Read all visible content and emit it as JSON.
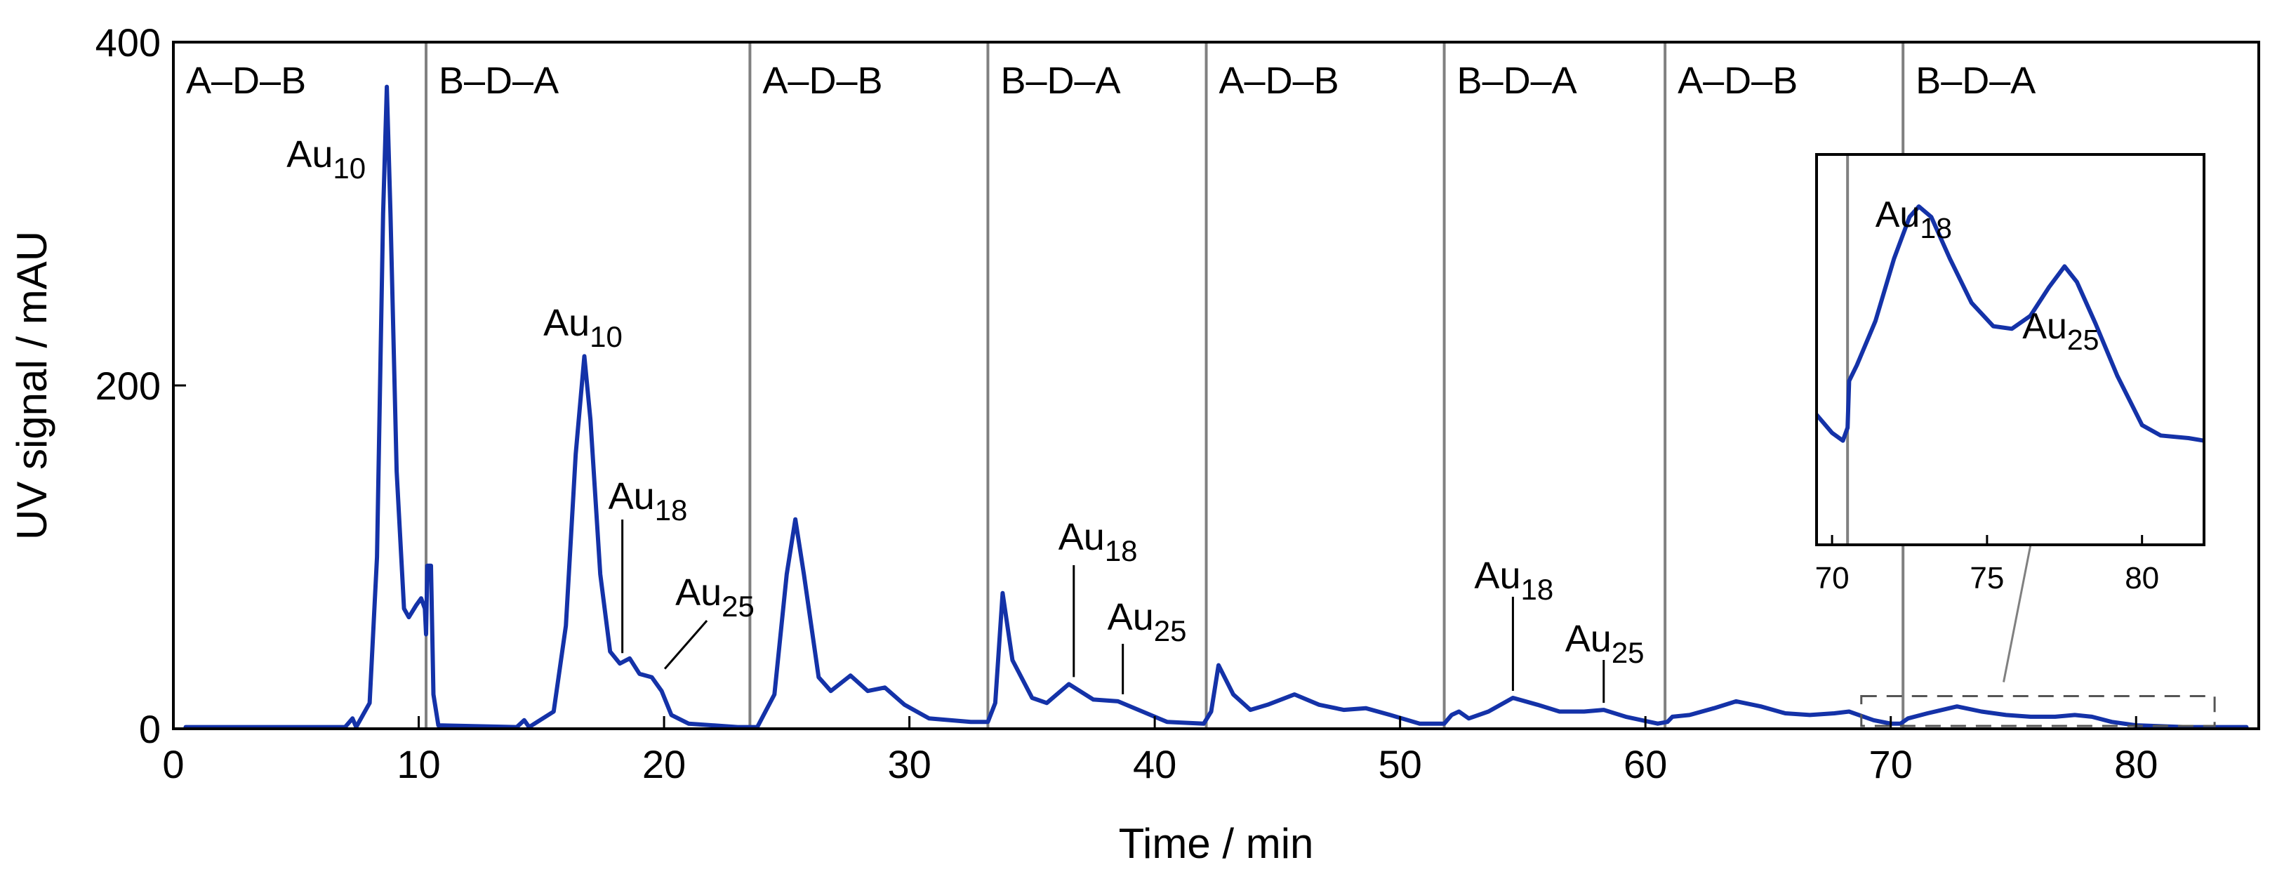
{
  "chart_data": {
    "type": "line",
    "title": "",
    "xlabel": "Time  / min",
    "ylabel": "UV signal  / mAU",
    "xlim": [
      0,
      85
    ],
    "ylim": [
      0,
      400
    ],
    "xticks": [
      "0",
      "10",
      "20",
      "30",
      "40",
      "50",
      "60",
      "70",
      "80"
    ],
    "yticks": [
      "0",
      "200",
      "400"
    ],
    "grid": false,
    "line_color": "#1432A8",
    "divider_color": "#808080",
    "divider_times": [
      10.3,
      23.5,
      33.2,
      42.1,
      51.8,
      60.8,
      70.5
    ],
    "segment_labels": [
      "A–D–B",
      "B–D–A",
      "A–D–B",
      "B–D–A",
      "A–D–B",
      "B–D–A",
      "A–D–B",
      "B–D–A"
    ],
    "series": [
      {
        "name": "UV signal",
        "points": [
          [
            0.5,
            1
          ],
          [
            7.0,
            1
          ],
          [
            7.3,
            6
          ],
          [
            7.45,
            1
          ],
          [
            8.0,
            15
          ],
          [
            8.3,
            100
          ],
          [
            8.55,
            300
          ],
          [
            8.7,
            374
          ],
          [
            8.85,
            300
          ],
          [
            9.1,
            150
          ],
          [
            9.4,
            70
          ],
          [
            9.6,
            65
          ],
          [
            9.9,
            72
          ],
          [
            10.1,
            76
          ],
          [
            10.25,
            70
          ],
          [
            10.3,
            55
          ],
          [
            10.35,
            95
          ],
          [
            10.5,
            95
          ],
          [
            10.6,
            20
          ],
          [
            10.8,
            2
          ],
          [
            14.0,
            1
          ],
          [
            14.3,
            5
          ],
          [
            14.5,
            1
          ],
          [
            15.5,
            10
          ],
          [
            16.0,
            60
          ],
          [
            16.4,
            160
          ],
          [
            16.75,
            217
          ],
          [
            17.0,
            180
          ],
          [
            17.4,
            90
          ],
          [
            17.8,
            45
          ],
          [
            18.2,
            38
          ],
          [
            18.6,
            41
          ],
          [
            19.0,
            32
          ],
          [
            19.5,
            30
          ],
          [
            19.9,
            22
          ],
          [
            20.3,
            8
          ],
          [
            21.0,
            3
          ],
          [
            23.0,
            1
          ],
          [
            23.8,
            1
          ],
          [
            24.5,
            20
          ],
          [
            25.0,
            90
          ],
          [
            25.35,
            122
          ],
          [
            25.7,
            90
          ],
          [
            26.3,
            30
          ],
          [
            26.8,
            22
          ],
          [
            27.6,
            31
          ],
          [
            28.3,
            22
          ],
          [
            29.0,
            24
          ],
          [
            29.8,
            14
          ],
          [
            30.8,
            6
          ],
          [
            32.5,
            4
          ],
          [
            33.2,
            4
          ],
          [
            33.5,
            15
          ],
          [
            33.8,
            79
          ],
          [
            34.2,
            40
          ],
          [
            35.0,
            18
          ],
          [
            35.6,
            15
          ],
          [
            36.5,
            26
          ],
          [
            37.5,
            17
          ],
          [
            38.5,
            16
          ],
          [
            39.5,
            10
          ],
          [
            40.5,
            4
          ],
          [
            42.0,
            3
          ],
          [
            42.3,
            10
          ],
          [
            42.6,
            37
          ],
          [
            43.2,
            20
          ],
          [
            43.9,
            11
          ],
          [
            44.6,
            14
          ],
          [
            45.7,
            20
          ],
          [
            46.7,
            14
          ],
          [
            47.7,
            11
          ],
          [
            48.6,
            12
          ],
          [
            49.6,
            8
          ],
          [
            50.8,
            3
          ],
          [
            51.8,
            3
          ],
          [
            52.1,
            8
          ],
          [
            52.4,
            10
          ],
          [
            52.8,
            6
          ],
          [
            53.6,
            10
          ],
          [
            54.6,
            18
          ],
          [
            55.6,
            14
          ],
          [
            56.5,
            10
          ],
          [
            57.5,
            10
          ],
          [
            58.3,
            11
          ],
          [
            59.2,
            7
          ],
          [
            60.5,
            3
          ],
          [
            60.9,
            4
          ],
          [
            61.1,
            7
          ],
          [
            61.8,
            8
          ],
          [
            62.8,
            12
          ],
          [
            63.7,
            16
          ],
          [
            64.7,
            13
          ],
          [
            65.7,
            9
          ],
          [
            66.7,
            8
          ],
          [
            67.7,
            9
          ],
          [
            68.3,
            10
          ],
          [
            69.3,
            5
          ],
          [
            70.0,
            3
          ],
          [
            70.4,
            3
          ],
          [
            70.7,
            6
          ],
          [
            71.5,
            9
          ],
          [
            72.7,
            13
          ],
          [
            73.7,
            10
          ],
          [
            74.7,
            8
          ],
          [
            75.7,
            7
          ],
          [
            76.7,
            7
          ],
          [
            77.5,
            8
          ],
          [
            78.2,
            7
          ],
          [
            79.0,
            4
          ],
          [
            80.0,
            2
          ],
          [
            82.0,
            1
          ],
          [
            84.5,
            1
          ]
        ]
      }
    ],
    "annotations": [
      {
        "base": "Au",
        "sub": "10",
        "time": 8.7,
        "value": 374
      },
      {
        "base": "Au",
        "sub": "10",
        "time": 16.75,
        "value": 217
      },
      {
        "base": "Au",
        "sub": "18",
        "time": 18.3,
        "value": 40
      },
      {
        "base": "Au",
        "sub": "25",
        "time": 19.6,
        "value": 30
      },
      {
        "base": "Au",
        "sub": "18",
        "time": 36.7,
        "value": 26
      },
      {
        "base": "Au",
        "sub": "25",
        "time": 38.7,
        "value": 16
      },
      {
        "base": "Au",
        "sub": "18",
        "time": 54.6,
        "value": 18
      },
      {
        "base": "Au",
        "sub": "25",
        "time": 58.3,
        "value": 11
      }
    ],
    "inset": {
      "xlim": [
        69.5,
        82
      ],
      "ylim": [
        0,
        15
      ],
      "xticks": [
        "70",
        "75",
        "80"
      ],
      "divider_time": 70.5,
      "points": [
        [
          69.5,
          5.0
        ],
        [
          70.0,
          4.3
        ],
        [
          70.35,
          4.0
        ],
        [
          70.5,
          4.5
        ],
        [
          70.55,
          6.3
        ],
        [
          70.8,
          6.9
        ],
        [
          71.4,
          8.6
        ],
        [
          72.0,
          11.0
        ],
        [
          72.5,
          12.6
        ],
        [
          72.8,
          13.0
        ],
        [
          73.2,
          12.6
        ],
        [
          73.8,
          11.0
        ],
        [
          74.5,
          9.3
        ],
        [
          75.2,
          8.4
        ],
        [
          75.8,
          8.3
        ],
        [
          76.4,
          8.8
        ],
        [
          77.0,
          9.9
        ],
        [
          77.5,
          10.7
        ],
        [
          77.9,
          10.1
        ],
        [
          78.5,
          8.5
        ],
        [
          79.2,
          6.5
        ],
        [
          80.0,
          4.6
        ],
        [
          80.6,
          4.2
        ],
        [
          81.5,
          4.1
        ],
        [
          82.0,
          4.0
        ]
      ],
      "annotations": [
        {
          "base": "Au",
          "sub": "18",
          "time": 72.8,
          "value": 13.0
        },
        {
          "base": "Au",
          "sub": "25",
          "time": 77.5,
          "value": 10.7
        }
      ]
    }
  }
}
